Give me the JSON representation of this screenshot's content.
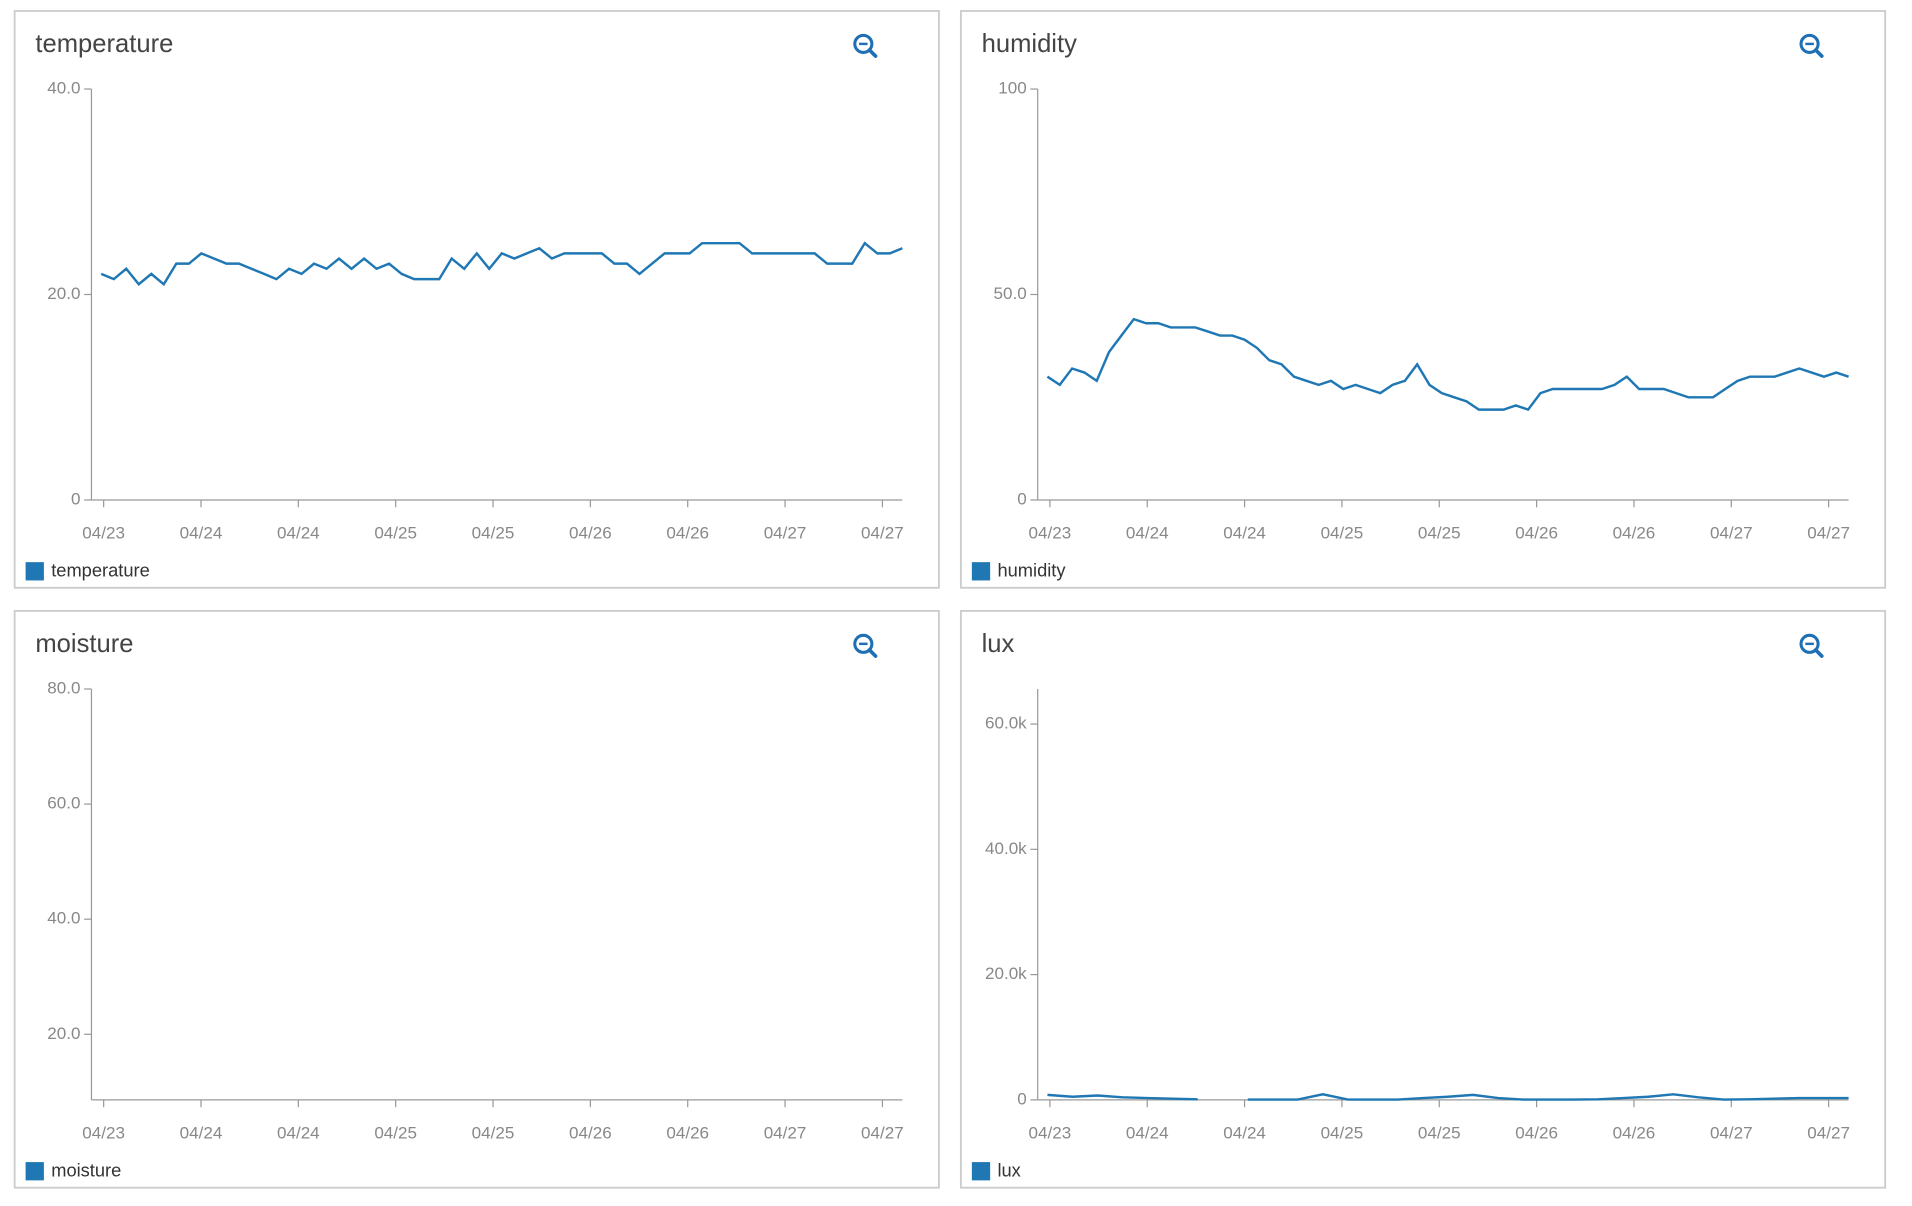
{
  "chart_data": [
    {
      "type": "line",
      "title": "temperature",
      "series": [
        {
          "name": "temperature",
          "color": "#1f77b4",
          "values": [
            22,
            21.5,
            22.5,
            21,
            22,
            21,
            23,
            23,
            24,
            23.5,
            23,
            23,
            22.5,
            22,
            21.5,
            22.5,
            22,
            23,
            22.5,
            23.5,
            22.5,
            23.5,
            22.5,
            23,
            22,
            21.5,
            21.5,
            21.5,
            23.5,
            22.5,
            24,
            22.5,
            24,
            23.5,
            24,
            24.5,
            23.5,
            24,
            24,
            24,
            24,
            23,
            23,
            22,
            23,
            24,
            24,
            24,
            25,
            25,
            25,
            25,
            24,
            24,
            24,
            24,
            24,
            24,
            23,
            23,
            23,
            25,
            24,
            24,
            24.5
          ]
        }
      ],
      "xticks": [
        "04/23",
        "04/24",
        "04/24",
        "04/25",
        "04/25",
        "04/26",
        "04/26",
        "04/27",
        "04/27"
      ],
      "ylim": [
        0,
        40
      ],
      "yticks": [
        {
          "value": 0,
          "label": "0"
        },
        {
          "value": 20,
          "label": "20.0"
        },
        {
          "value": 40,
          "label": "40.0"
        }
      ]
    },
    {
      "type": "line",
      "title": "humidity",
      "series": [
        {
          "name": "humidity",
          "color": "#1f77b4",
          "values": [
            30,
            28,
            32,
            31,
            29,
            36,
            40,
            44,
            43,
            43,
            42,
            42,
            42,
            41,
            40,
            40,
            39,
            37,
            34,
            33,
            30,
            29,
            28,
            29,
            27,
            28,
            27,
            26,
            28,
            29,
            33,
            28,
            26,
            25,
            24,
            22,
            22,
            22,
            23,
            22,
            26,
            27,
            27,
            27,
            27,
            27,
            28,
            30,
            27,
            27,
            27,
            26,
            25,
            25,
            25,
            27,
            29,
            30,
            30,
            30,
            31,
            32,
            31,
            30,
            31,
            30
          ]
        }
      ],
      "xticks": [
        "04/23",
        "04/24",
        "04/24",
        "04/25",
        "04/25",
        "04/26",
        "04/26",
        "04/27",
        "04/27"
      ],
      "ylim": [
        0,
        100
      ],
      "yticks": [
        0,
        {
          "value": 50,
          "label": "50.0"
        },
        100
      ]
    },
    {
      "type": "line",
      "title": "moisture",
      "series": [
        {
          "name": "moisture",
          "color": "#1f77b4",
          "values": []
        }
      ],
      "xticks": [
        "04/23",
        "04/24",
        "04/24",
        "04/25",
        "04/25",
        "04/26",
        "04/26",
        "04/27",
        "04/27"
      ],
      "ylim": [
        8.6,
        80
      ],
      "yticks": [
        {
          "value": 20,
          "label": "20.0"
        },
        {
          "value": 40,
          "label": "40.0"
        },
        {
          "value": 60,
          "label": "60.0"
        },
        {
          "value": 80,
          "label": "80.0"
        }
      ]
    },
    {
      "type": "line",
      "title": "lux",
      "series": [
        {
          "name": "lux",
          "color": "#1f77b4",
          "values": [
            800,
            500,
            700,
            400,
            300,
            200,
            100,
            null,
            50,
            50,
            50,
            900,
            50,
            50,
            50,
            300,
            500,
            800,
            300,
            50,
            50,
            50,
            100,
            300,
            500,
            900,
            400,
            50,
            100,
            200,
            300,
            300,
            300
          ]
        }
      ],
      "xticks": [
        "04/23",
        "04/24",
        "04/24",
        "04/25",
        "04/25",
        "04/26",
        "04/26",
        "04/27",
        "04/27"
      ],
      "ylim": [
        0,
        65600
      ],
      "yticks": [
        0,
        {
          "value": 20000,
          "label": "20.0k"
        },
        {
          "value": 40000,
          "label": "40.0k"
        },
        {
          "value": 60000,
          "label": "60.0k"
        }
      ]
    }
  ]
}
